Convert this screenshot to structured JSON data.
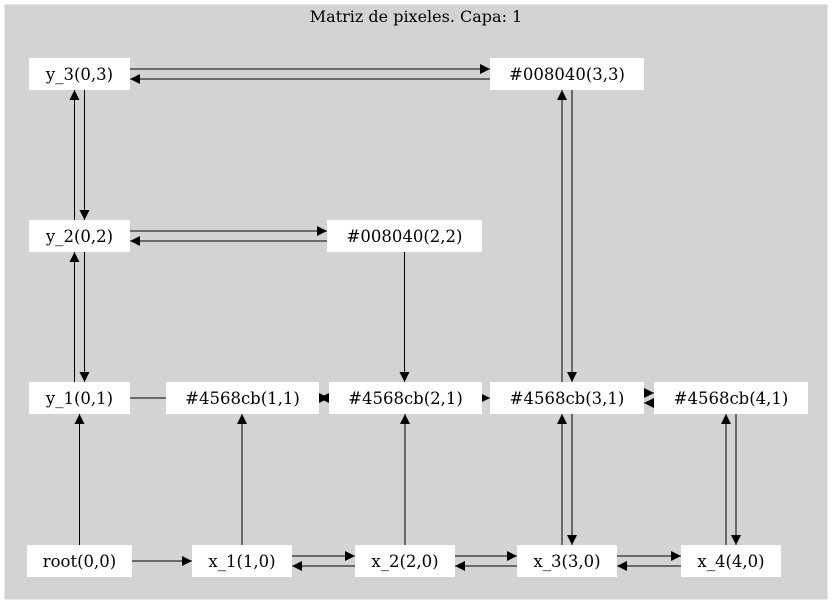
{
  "title": "Matriz de pixeles. Capa: 1",
  "colors": {
    "cluster_fill": "#d3d3d3",
    "cluster_stroke": "#ffffff",
    "node_fill": "#ffffff",
    "edge": "#000000"
  },
  "nodes": {
    "y3": "y_3(0,3)",
    "n33": "#008040(3,3)",
    "y2": "y_2(0,2)",
    "n22": "#008040(2,2)",
    "y1": "y_1(0,1)",
    "n11": "#4568cb(1,1)",
    "n21": "#4568cb(2,1)",
    "n31": "#4568cb(3,1)",
    "n41": "#4568cb(4,1)",
    "root": "root(0,0)",
    "x1": "x_1(1,0)",
    "x2": "x_2(2,0)",
    "x3": "x_3(3,0)",
    "x4": "x_4(4,0)"
  },
  "edges": [
    [
      "y3",
      "n33"
    ],
    [
      "n33",
      "y3"
    ],
    [
      "y3",
      "y2"
    ],
    [
      "y2",
      "y3"
    ],
    [
      "y2",
      "n22"
    ],
    [
      "n22",
      "y2"
    ],
    [
      "y2",
      "y1"
    ],
    [
      "y1",
      "y2"
    ],
    [
      "n33",
      "n31"
    ],
    [
      "n31",
      "n33"
    ],
    [
      "n22",
      "n21"
    ],
    [
      "y1",
      "n21"
    ],
    [
      "n21",
      "n11"
    ],
    [
      "n21",
      "n31"
    ],
    [
      "n31",
      "n41"
    ],
    [
      "n41",
      "n31"
    ],
    [
      "root",
      "y1"
    ],
    [
      "root",
      "x1"
    ],
    [
      "x1",
      "x2"
    ],
    [
      "x2",
      "x1"
    ],
    [
      "x2",
      "x3"
    ],
    [
      "x3",
      "x2"
    ],
    [
      "x3",
      "x4"
    ],
    [
      "x4",
      "x3"
    ],
    [
      "x1",
      "n11"
    ],
    [
      "x2",
      "n21"
    ],
    [
      "x3",
      "n31"
    ],
    [
      "n31",
      "x3"
    ],
    [
      "x4",
      "n41"
    ],
    [
      "n41",
      "x4"
    ]
  ]
}
